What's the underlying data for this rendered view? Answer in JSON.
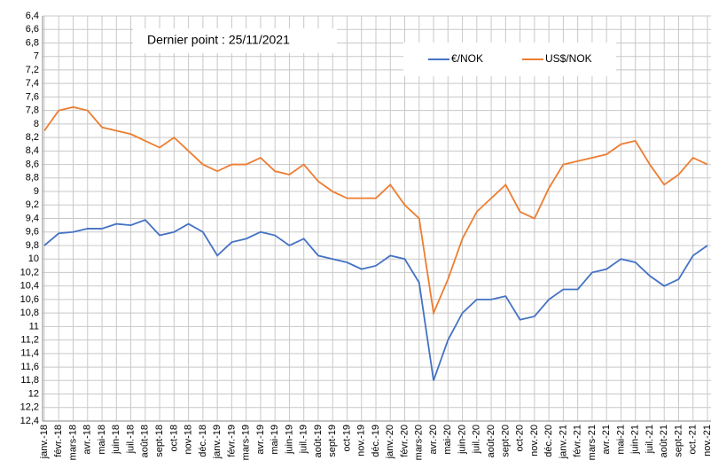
{
  "chart_data": {
    "type": "line",
    "annotation": "Dernier point : 25/11/2021",
    "categories": [
      "janv.-18",
      "févr.-18",
      "mars-18",
      "avr.-18",
      "mai-18",
      "juin-18",
      "juil.-18",
      "août-18",
      "sept-18",
      "oct-18",
      "nov-18",
      "déc.-18",
      "janv.-19",
      "févr.-19",
      "mars-19",
      "avr.-19",
      "mai-19",
      "juin-19",
      "juil.-19",
      "août-19",
      "sept-19",
      "oct-19",
      "nov.-19",
      "déc.-19",
      "janv.-20",
      "févr.-20",
      "mars-20",
      "avr.-20",
      "mai-20",
      "juin-20",
      "juil.-20",
      "août-20",
      "sept-20",
      "oct-20",
      "nov.-20",
      "déc.-20",
      "janv.-21",
      "févr.-21",
      "mars-21",
      "avr.-21",
      "mai-21",
      "juin-21",
      "juil.-21",
      "août-21",
      "sept-21",
      "oct.-21",
      "nov.-21"
    ],
    "series": [
      {
        "name": "€/NOK",
        "color": "#4472c4",
        "values": [
          9.8,
          9.62,
          9.6,
          9.55,
          9.55,
          9.48,
          9.5,
          9.42,
          9.65,
          9.6,
          9.48,
          9.6,
          9.95,
          9.75,
          9.7,
          9.6,
          9.65,
          9.8,
          9.7,
          9.95,
          10.0,
          10.05,
          10.15,
          10.1,
          9.95,
          10.0,
          10.35,
          11.8,
          11.2,
          10.8,
          10.6,
          10.6,
          10.55,
          10.9,
          10.85,
          10.6,
          10.45,
          10.45,
          10.2,
          10.15,
          10.0,
          10.05,
          10.25,
          10.4,
          10.3,
          9.95,
          9.8
        ]
      },
      {
        "name": "US$/NOK",
        "color": "#ed7d31",
        "values": [
          8.1,
          7.8,
          7.75,
          7.8,
          8.05,
          8.1,
          8.15,
          8.25,
          8.35,
          8.2,
          8.4,
          8.6,
          8.7,
          8.6,
          8.6,
          8.5,
          8.7,
          8.75,
          8.6,
          8.85,
          9.0,
          9.1,
          9.1,
          9.1,
          8.9,
          9.2,
          9.4,
          10.8,
          10.3,
          9.7,
          9.3,
          9.1,
          8.9,
          9.3,
          9.4,
          8.95,
          8.6,
          8.55,
          8.5,
          8.45,
          8.3,
          8.25,
          8.6,
          8.9,
          8.75,
          8.5,
          8.6
        ]
      }
    ],
    "ylim": [
      6.4,
      12.4
    ],
    "y_inverted": true,
    "yticks": [
      {
        "value": 6.4,
        "label": "6,4"
      },
      {
        "value": 6.6,
        "label": "6,6"
      },
      {
        "value": 6.8,
        "label": "6,8"
      },
      7,
      {
        "value": 7.2,
        "label": "7,2"
      },
      {
        "value": 7.4,
        "label": "7,4"
      },
      {
        "value": 7.6,
        "label": "7,6"
      },
      {
        "value": 7.8,
        "label": "7,8"
      },
      8,
      {
        "value": 8.2,
        "label": "8,2"
      },
      {
        "value": 8.4,
        "label": "8,4"
      },
      {
        "value": 8.6,
        "label": "8,6"
      },
      {
        "value": 8.8,
        "label": "8,8"
      },
      9,
      {
        "value": 9.2,
        "label": "9,2"
      },
      {
        "value": 9.4,
        "label": "9,4"
      },
      {
        "value": 9.6,
        "label": "9,6"
      },
      {
        "value": 9.8,
        "label": "9,8"
      },
      10,
      {
        "value": 10.2,
        "label": "10,2"
      },
      {
        "value": 10.4,
        "label": "10,4"
      },
      {
        "value": 10.6,
        "label": "10,6"
      },
      {
        "value": 10.8,
        "label": "10,8"
      },
      11,
      {
        "value": 11.2,
        "label": "11,2"
      },
      {
        "value": 11.4,
        "label": "11,4"
      },
      {
        "value": 11.6,
        "label": "11,6"
      },
      {
        "value": 11.8,
        "label": "11,8"
      },
      12,
      {
        "value": 12.2,
        "label": "12,2"
      },
      {
        "value": 12.4,
        "label": "12,4"
      }
    ],
    "grid": true,
    "legend": "top-right"
  }
}
